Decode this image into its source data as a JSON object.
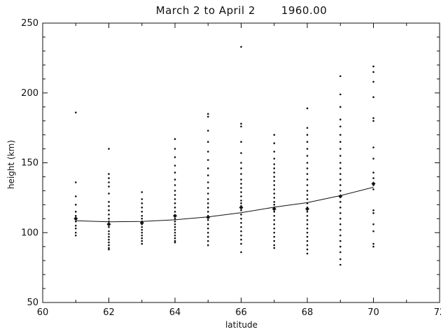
{
  "chart_data": {
    "type": "scatter",
    "title": "March 2 to April 2       1960.00",
    "xlabel": "latitude",
    "ylabel": "height (km)",
    "xlim": [
      60,
      72
    ],
    "ylim": [
      50,
      250
    ],
    "xticks": [
      60,
      62,
      64,
      66,
      68,
      70,
      72
    ],
    "yticks": [
      50,
      100,
      150,
      200,
      250
    ],
    "grid": false,
    "series": [
      {
        "kind": "points",
        "points": [
          {
            "x": 61,
            "y": 186
          },
          {
            "x": 61,
            "y": 136
          },
          {
            "x": 61,
            "y": 126
          },
          {
            "x": 61,
            "y": 120
          },
          {
            "x": 61,
            "y": 115
          },
          {
            "x": 61,
            "y": 112
          },
          {
            "x": 61,
            "y": 108
          },
          {
            "x": 61,
            "y": 105
          },
          {
            "x": 61,
            "y": 103
          },
          {
            "x": 61,
            "y": 100
          },
          {
            "x": 61,
            "y": 98
          },
          {
            "x": 62,
            "y": 160
          },
          {
            "x": 62,
            "y": 142
          },
          {
            "x": 62,
            "y": 139
          },
          {
            "x": 62,
            "y": 136
          },
          {
            "x": 62,
            "y": 133
          },
          {
            "x": 62,
            "y": 128
          },
          {
            "x": 62,
            "y": 122
          },
          {
            "x": 62,
            "y": 119
          },
          {
            "x": 62,
            "y": 116
          },
          {
            "x": 62,
            "y": 113
          },
          {
            "x": 62,
            "y": 110
          },
          {
            "x": 62,
            "y": 108
          },
          {
            "x": 62,
            "y": 104
          },
          {
            "x": 62,
            "y": 101
          },
          {
            "x": 62,
            "y": 99
          },
          {
            "x": 62,
            "y": 97
          },
          {
            "x": 62,
            "y": 95
          },
          {
            "x": 62,
            "y": 93
          },
          {
            "x": 62,
            "y": 91
          },
          {
            "x": 62,
            "y": 89
          },
          {
            "x": 62,
            "y": 88
          },
          {
            "x": 63,
            "y": 129
          },
          {
            "x": 63,
            "y": 124
          },
          {
            "x": 63,
            "y": 121
          },
          {
            "x": 63,
            "y": 118
          },
          {
            "x": 63,
            "y": 115
          },
          {
            "x": 63,
            "y": 112
          },
          {
            "x": 63,
            "y": 110
          },
          {
            "x": 63,
            "y": 108
          },
          {
            "x": 63,
            "y": 106
          },
          {
            "x": 63,
            "y": 104
          },
          {
            "x": 63,
            "y": 102
          },
          {
            "x": 63,
            "y": 100
          },
          {
            "x": 63,
            "y": 98
          },
          {
            "x": 63,
            "y": 96
          },
          {
            "x": 63,
            "y": 94
          },
          {
            "x": 63,
            "y": 92
          },
          {
            "x": 64,
            "y": 167
          },
          {
            "x": 64,
            "y": 160
          },
          {
            "x": 64,
            "y": 154
          },
          {
            "x": 64,
            "y": 148
          },
          {
            "x": 64,
            "y": 143
          },
          {
            "x": 64,
            "y": 138
          },
          {
            "x": 64,
            "y": 134
          },
          {
            "x": 64,
            "y": 130
          },
          {
            "x": 64,
            "y": 127
          },
          {
            "x": 64,
            "y": 124
          },
          {
            "x": 64,
            "y": 121
          },
          {
            "x": 64,
            "y": 118
          },
          {
            "x": 64,
            "y": 115
          },
          {
            "x": 64,
            "y": 112
          },
          {
            "x": 64,
            "y": 110
          },
          {
            "x": 64,
            "y": 108
          },
          {
            "x": 64,
            "y": 106
          },
          {
            "x": 64,
            "y": 104
          },
          {
            "x": 64,
            "y": 102
          },
          {
            "x": 64,
            "y": 100
          },
          {
            "x": 64,
            "y": 98
          },
          {
            "x": 64,
            "y": 96
          },
          {
            "x": 64,
            "y": 94
          },
          {
            "x": 64,
            "y": 93
          },
          {
            "x": 65,
            "y": 185
          },
          {
            "x": 65,
            "y": 183
          },
          {
            "x": 65,
            "y": 173
          },
          {
            "x": 65,
            "y": 165
          },
          {
            "x": 65,
            "y": 158
          },
          {
            "x": 65,
            "y": 152
          },
          {
            "x": 65,
            "y": 146
          },
          {
            "x": 65,
            "y": 141
          },
          {
            "x": 65,
            "y": 136
          },
          {
            "x": 65,
            "y": 132
          },
          {
            "x": 65,
            "y": 128
          },
          {
            "x": 65,
            "y": 124
          },
          {
            "x": 65,
            "y": 121
          },
          {
            "x": 65,
            "y": 118
          },
          {
            "x": 65,
            "y": 115
          },
          {
            "x": 65,
            "y": 112
          },
          {
            "x": 65,
            "y": 109
          },
          {
            "x": 65,
            "y": 106
          },
          {
            "x": 65,
            "y": 103
          },
          {
            "x": 65,
            "y": 100
          },
          {
            "x": 65,
            "y": 97
          },
          {
            "x": 65,
            "y": 94
          },
          {
            "x": 65,
            "y": 91
          },
          {
            "x": 66,
            "y": 233
          },
          {
            "x": 66,
            "y": 178
          },
          {
            "x": 66,
            "y": 176
          },
          {
            "x": 66,
            "y": 165
          },
          {
            "x": 66,
            "y": 157
          },
          {
            "x": 66,
            "y": 150
          },
          {
            "x": 66,
            "y": 146
          },
          {
            "x": 66,
            "y": 142
          },
          {
            "x": 66,
            "y": 138
          },
          {
            "x": 66,
            "y": 135
          },
          {
            "x": 66,
            "y": 132
          },
          {
            "x": 66,
            "y": 129
          },
          {
            "x": 66,
            "y": 126
          },
          {
            "x": 66,
            "y": 123
          },
          {
            "x": 66,
            "y": 121
          },
          {
            "x": 66,
            "y": 119
          },
          {
            "x": 66,
            "y": 116
          },
          {
            "x": 66,
            "y": 113
          },
          {
            "x": 66,
            "y": 110
          },
          {
            "x": 66,
            "y": 107
          },
          {
            "x": 66,
            "y": 104
          },
          {
            "x": 66,
            "y": 101
          },
          {
            "x": 66,
            "y": 98
          },
          {
            "x": 66,
            "y": 95
          },
          {
            "x": 66,
            "y": 92
          },
          {
            "x": 66,
            "y": 86
          },
          {
            "x": 67,
            "y": 170
          },
          {
            "x": 67,
            "y": 164
          },
          {
            "x": 67,
            "y": 158
          },
          {
            "x": 67,
            "y": 153
          },
          {
            "x": 67,
            "y": 149
          },
          {
            "x": 67,
            "y": 146
          },
          {
            "x": 67,
            "y": 143
          },
          {
            "x": 67,
            "y": 140
          },
          {
            "x": 67,
            "y": 137
          },
          {
            "x": 67,
            "y": 134
          },
          {
            "x": 67,
            "y": 131
          },
          {
            "x": 67,
            "y": 128
          },
          {
            "x": 67,
            "y": 125
          },
          {
            "x": 67,
            "y": 122
          },
          {
            "x": 67,
            "y": 120
          },
          {
            "x": 67,
            "y": 118
          },
          {
            "x": 67,
            "y": 115
          },
          {
            "x": 67,
            "y": 112
          },
          {
            "x": 67,
            "y": 109
          },
          {
            "x": 67,
            "y": 106
          },
          {
            "x": 67,
            "y": 103
          },
          {
            "x": 67,
            "y": 100
          },
          {
            "x": 67,
            "y": 97
          },
          {
            "x": 67,
            "y": 94
          },
          {
            "x": 67,
            "y": 91
          },
          {
            "x": 67,
            "y": 89
          },
          {
            "x": 68,
            "y": 189
          },
          {
            "x": 68,
            "y": 175
          },
          {
            "x": 68,
            "y": 170
          },
          {
            "x": 68,
            "y": 165
          },
          {
            "x": 68,
            "y": 160
          },
          {
            "x": 68,
            "y": 155
          },
          {
            "x": 68,
            "y": 150
          },
          {
            "x": 68,
            "y": 146
          },
          {
            "x": 68,
            "y": 142
          },
          {
            "x": 68,
            "y": 138
          },
          {
            "x": 68,
            "y": 134
          },
          {
            "x": 68,
            "y": 130
          },
          {
            "x": 68,
            "y": 127
          },
          {
            "x": 68,
            "y": 124
          },
          {
            "x": 68,
            "y": 121
          },
          {
            "x": 68,
            "y": 118
          },
          {
            "x": 68,
            "y": 115
          },
          {
            "x": 68,
            "y": 112
          },
          {
            "x": 68,
            "y": 109
          },
          {
            "x": 68,
            "y": 106
          },
          {
            "x": 68,
            "y": 103
          },
          {
            "x": 68,
            "y": 100
          },
          {
            "x": 68,
            "y": 97
          },
          {
            "x": 68,
            "y": 94
          },
          {
            "x": 68,
            "y": 91
          },
          {
            "x": 68,
            "y": 88
          },
          {
            "x": 68,
            "y": 85
          },
          {
            "x": 69,
            "y": 212
          },
          {
            "x": 69,
            "y": 199
          },
          {
            "x": 69,
            "y": 190
          },
          {
            "x": 69,
            "y": 181
          },
          {
            "x": 69,
            "y": 176
          },
          {
            "x": 69,
            "y": 170
          },
          {
            "x": 69,
            "y": 165
          },
          {
            "x": 69,
            "y": 160
          },
          {
            "x": 69,
            "y": 155
          },
          {
            "x": 69,
            "y": 150
          },
          {
            "x": 69,
            "y": 146
          },
          {
            "x": 69,
            "y": 142
          },
          {
            "x": 69,
            "y": 138
          },
          {
            "x": 69,
            "y": 134
          },
          {
            "x": 69,
            "y": 130
          },
          {
            "x": 69,
            "y": 126
          },
          {
            "x": 69,
            "y": 122
          },
          {
            "x": 69,
            "y": 118
          },
          {
            "x": 69,
            "y": 114
          },
          {
            "x": 69,
            "y": 110
          },
          {
            "x": 69,
            "y": 106
          },
          {
            "x": 69,
            "y": 102
          },
          {
            "x": 69,
            "y": 98
          },
          {
            "x": 69,
            "y": 94
          },
          {
            "x": 69,
            "y": 90
          },
          {
            "x": 69,
            "y": 86
          },
          {
            "x": 69,
            "y": 81
          },
          {
            "x": 69,
            "y": 77
          },
          {
            "x": 70,
            "y": 219
          },
          {
            "x": 70,
            "y": 215
          },
          {
            "x": 70,
            "y": 208
          },
          {
            "x": 70,
            "y": 197
          },
          {
            "x": 70,
            "y": 182
          },
          {
            "x": 70,
            "y": 180
          },
          {
            "x": 70,
            "y": 161
          },
          {
            "x": 70,
            "y": 153
          },
          {
            "x": 70,
            "y": 143
          },
          {
            "x": 70,
            "y": 139
          },
          {
            "x": 70,
            "y": 134
          },
          {
            "x": 70,
            "y": 131
          },
          {
            "x": 70,
            "y": 116
          },
          {
            "x": 70,
            "y": 114
          },
          {
            "x": 70,
            "y": 106
          },
          {
            "x": 70,
            "y": 101
          },
          {
            "x": 70,
            "y": 92
          },
          {
            "x": 70,
            "y": 90
          }
        ]
      },
      {
        "kind": "means",
        "points": [
          {
            "x": 61,
            "y": 110
          },
          {
            "x": 62,
            "y": 106
          },
          {
            "x": 63,
            "y": 107
          },
          {
            "x": 64,
            "y": 112
          },
          {
            "x": 65,
            "y": 111
          },
          {
            "x": 66,
            "y": 118
          },
          {
            "x": 67,
            "y": 117
          },
          {
            "x": 68,
            "y": 117
          },
          {
            "x": 69,
            "y": 126
          },
          {
            "x": 70,
            "y": 135
          }
        ]
      },
      {
        "kind": "fit",
        "points": [
          {
            "x": 61,
            "y": 108.5
          },
          {
            "x": 62,
            "y": 107.8
          },
          {
            "x": 63,
            "y": 108.0
          },
          {
            "x": 64,
            "y": 109.2
          },
          {
            "x": 65,
            "y": 111.3
          },
          {
            "x": 66,
            "y": 114.3
          },
          {
            "x": 67,
            "y": 118.2
          },
          {
            "x": 68,
            "y": 121.5
          },
          {
            "x": 69,
            "y": 126.5
          },
          {
            "x": 70,
            "y": 132.5
          }
        ]
      }
    ]
  }
}
